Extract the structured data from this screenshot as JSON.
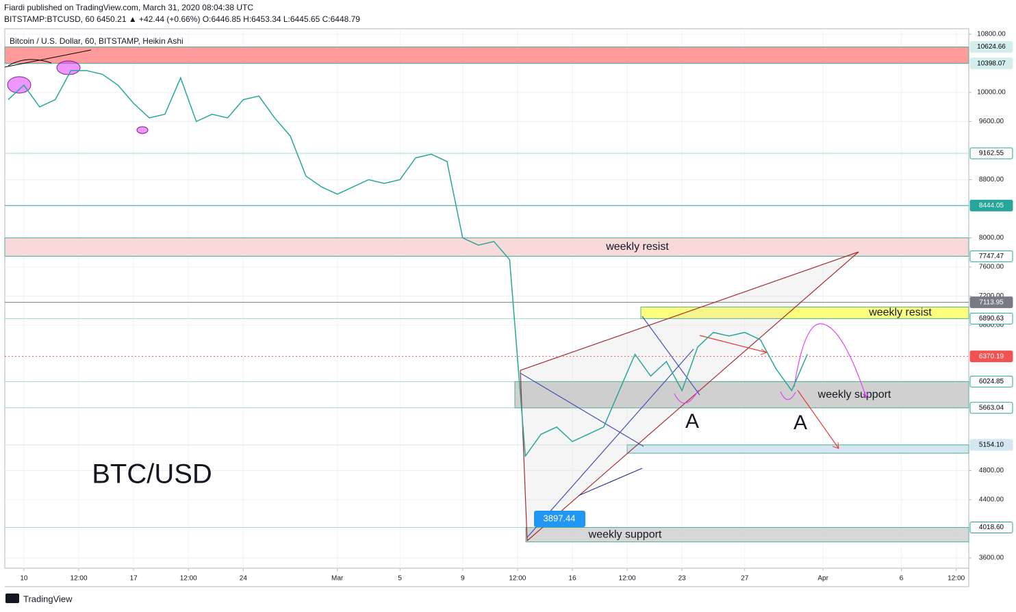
{
  "header": {
    "publisher": "Fiardi published on TradingView.com, March 31, 2020 08:04:38 UTC",
    "symbol_line": "BITSTAMP:BTCUSD, 60  6450.21  ▲ +42.44 (+0.66%)  O:6446.85  H:6453.34  L:6445.65  C:6448.79"
  },
  "chart_data": {
    "type": "line",
    "title": "Bitcoin / U.S. Dollar, 60, BITSTAMP, Heikin Ashi",
    "watermark": "BTC/USD",
    "x": [
      -1,
      0,
      1,
      2,
      3,
      4,
      5,
      6,
      7,
      8,
      9,
      10,
      11,
      12,
      13,
      14,
      15,
      16,
      17,
      18,
      19,
      20,
      21,
      22,
      23,
      24,
      25,
      26,
      27,
      28,
      29,
      30,
      31,
      32,
      33,
      34,
      35,
      36,
      37,
      38,
      39,
      40,
      41,
      42,
      43,
      44,
      45,
      46,
      47,
      48,
      49,
      50
    ],
    "series": [
      {
        "name": "BTCUSD",
        "color": "#26a69a",
        "values": [
          9900,
          10100,
          9800,
          9900,
          10300,
          10300,
          10250,
          10100,
          9850,
          9650,
          9700,
          10200,
          9600,
          9700,
          9650,
          9900,
          9950,
          9650,
          9400,
          8850,
          8700,
          8600,
          8700,
          8800,
          8750,
          8800,
          9100,
          9150,
          9050,
          8000,
          7900,
          7950,
          7700,
          5000,
          5300,
          5400,
          5200,
          5300,
          5400,
          5900,
          6400,
          6100,
          6300,
          5900,
          6500,
          6700,
          6650,
          6700,
          6600,
          6200,
          5900,
          6400
        ]
      }
    ],
    "xlim": [
      -1.22,
      60.3
    ],
    "ylim": [
      3459,
      10875
    ],
    "xticks": [
      {
        "value": 0,
        "label": "10"
      },
      {
        "value": 3.5,
        "label": "12:00"
      },
      {
        "value": 7,
        "label": "17"
      },
      {
        "value": 10.5,
        "label": "12:00"
      },
      {
        "value": 14,
        "label": "24"
      },
      {
        "value": 20,
        "label": "Mar"
      },
      {
        "value": 24,
        "label": "5"
      },
      {
        "value": 28,
        "label": "9"
      },
      {
        "value": 31.5,
        "label": "12:00"
      },
      {
        "value": 35,
        "label": "16"
      },
      {
        "value": 38.5,
        "label": "12:00"
      },
      {
        "value": 42,
        "label": "23"
      },
      {
        "value": 46,
        "label": "27"
      },
      {
        "value": 51,
        "label": "Apr"
      },
      {
        "value": 56,
        "label": "6"
      },
      {
        "value": 59.5,
        "label": "12:00"
      }
    ],
    "yticks": [
      {
        "value": 3600,
        "label": "3600.00"
      },
      {
        "value": 4400,
        "label": "4400.00"
      },
      {
        "value": 4800,
        "label": "4800.00"
      },
      {
        "value": 6800,
        "label": "6800.00"
      },
      {
        "value": 7200,
        "label": "7200.00"
      },
      {
        "value": 7600,
        "label": "7600.00"
      },
      {
        "value": 8000,
        "label": "8000.00"
      },
      {
        "value": 8800,
        "label": "8800.00"
      },
      {
        "value": 9600,
        "label": "9600.00"
      },
      {
        "value": 10000,
        "label": "10000.00"
      },
      {
        "value": 10800,
        "label": "10800.00"
      }
    ],
    "grid": true,
    "price_labels": [
      {
        "value": 10624.66,
        "bg": "#d4eeee",
        "fg": "#000000"
      },
      {
        "value": 10398.07,
        "bg": "#d4eeee",
        "fg": "#000000"
      },
      {
        "value": 9162.55,
        "bg": "#ffffff",
        "fg": "#000000"
      },
      {
        "value": 8444.05,
        "bg": "#26a69a",
        "fg": "#ffffff"
      },
      {
        "value": 7747.47,
        "bg": "#ffffff",
        "fg": "#000000"
      },
      {
        "value": 7113.95,
        "bg": "#787b86",
        "fg": "#ffffff"
      },
      {
        "value": 6890.63,
        "bg": "#ffffff",
        "fg": "#000000"
      },
      {
        "value": 6370.19,
        "bg": "#ef5350",
        "fg": "#ffffff"
      },
      {
        "value": 6024.85,
        "bg": "#ffffff",
        "fg": "#000000"
      },
      {
        "value": 5663.04,
        "bg": "#ffffff",
        "fg": "#000000"
      },
      {
        "value": 5154.1,
        "label": "5154.10",
        "bg": "#d4e6f1",
        "fg": "#000000"
      },
      {
        "value": 4018.6,
        "label": "4018.60",
        "bg": "#ffffff",
        "fg": "#000000"
      }
    ],
    "zones": [
      {
        "range": [
          10398.07,
          10624.66
        ],
        "color": "#ff8a8a"
      },
      {
        "label": "weekly resist",
        "range": [
          7747.47,
          8000
        ],
        "color": "#f7d4d4"
      },
      {
        "label": "weekly resist",
        "range": [
          6890.63,
          7050
        ],
        "color": "#ffff66"
      },
      {
        "label": "weekly support",
        "range": [
          5663.04,
          6024.85
        ],
        "color": "#c8c8c8"
      },
      {
        "range": [
          5040,
          5154.1
        ],
        "color": "#cfe3f0"
      },
      {
        "label": "weekly support",
        "range": [
          3820,
          4018.6
        ],
        "color": "#d0d0d0"
      }
    ],
    "annotations": [
      "A",
      "A"
    ],
    "low_label": "3897.44"
  },
  "footer": {
    "brand": "TradingView"
  }
}
